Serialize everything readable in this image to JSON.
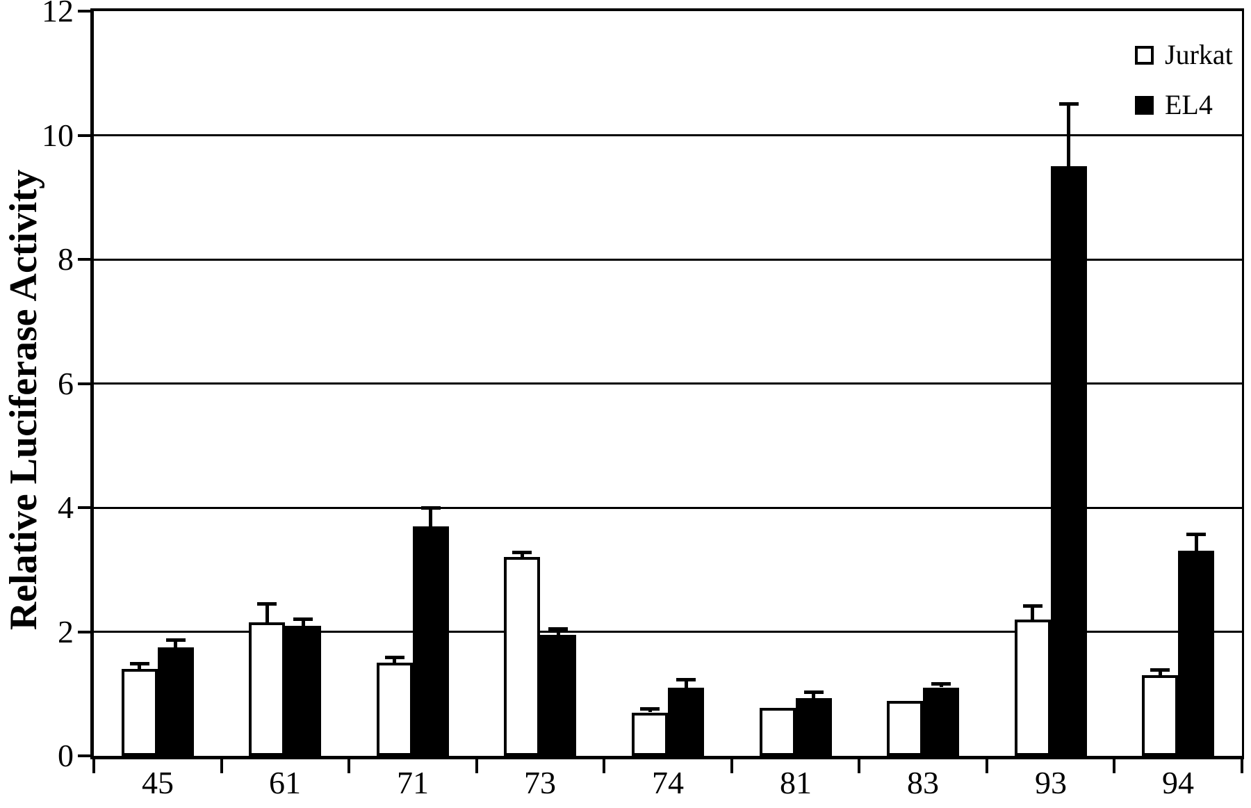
{
  "figure": {
    "background_color": "#ffffff",
    "axis_color": "#000000"
  },
  "chart_data": {
    "type": "bar",
    "title": "",
    "xlabel": "",
    "ylabel": "Relative Luciferase Activity",
    "categories": [
      "45",
      "61",
      "71",
      "73",
      "74",
      "81",
      "83",
      "93",
      "94"
    ],
    "series": [
      {
        "name": "Jurkat",
        "fill": "#ffffff",
        "border": "#000000",
        "values": [
          1.4,
          2.15,
          1.5,
          3.2,
          0.7,
          0.77,
          0.88,
          2.2,
          1.3
        ],
        "errors": [
          0.08,
          0.3,
          0.08,
          0.08,
          0.06,
          0,
          0,
          0.22,
          0.08
        ]
      },
      {
        "name": "EL4",
        "fill": "#000000",
        "border": "#000000",
        "values": [
          1.75,
          2.1,
          3.7,
          1.95,
          1.1,
          0.93,
          1.1,
          9.5,
          3.3
        ],
        "errors": [
          0.12,
          0.1,
          0.29,
          0.1,
          0.13,
          0.1,
          0.06,
          1.0,
          0.27
        ]
      }
    ],
    "ylim": [
      0,
      12
    ],
    "yticks": [
      0,
      2,
      4,
      6,
      8,
      10,
      12
    ],
    "grid": "horizontal",
    "gridline_values": [
      2,
      4,
      6,
      8,
      10
    ],
    "error_bars": "upper-only",
    "legend_position": "top-right-inside",
    "bar_outline": "#000000"
  }
}
